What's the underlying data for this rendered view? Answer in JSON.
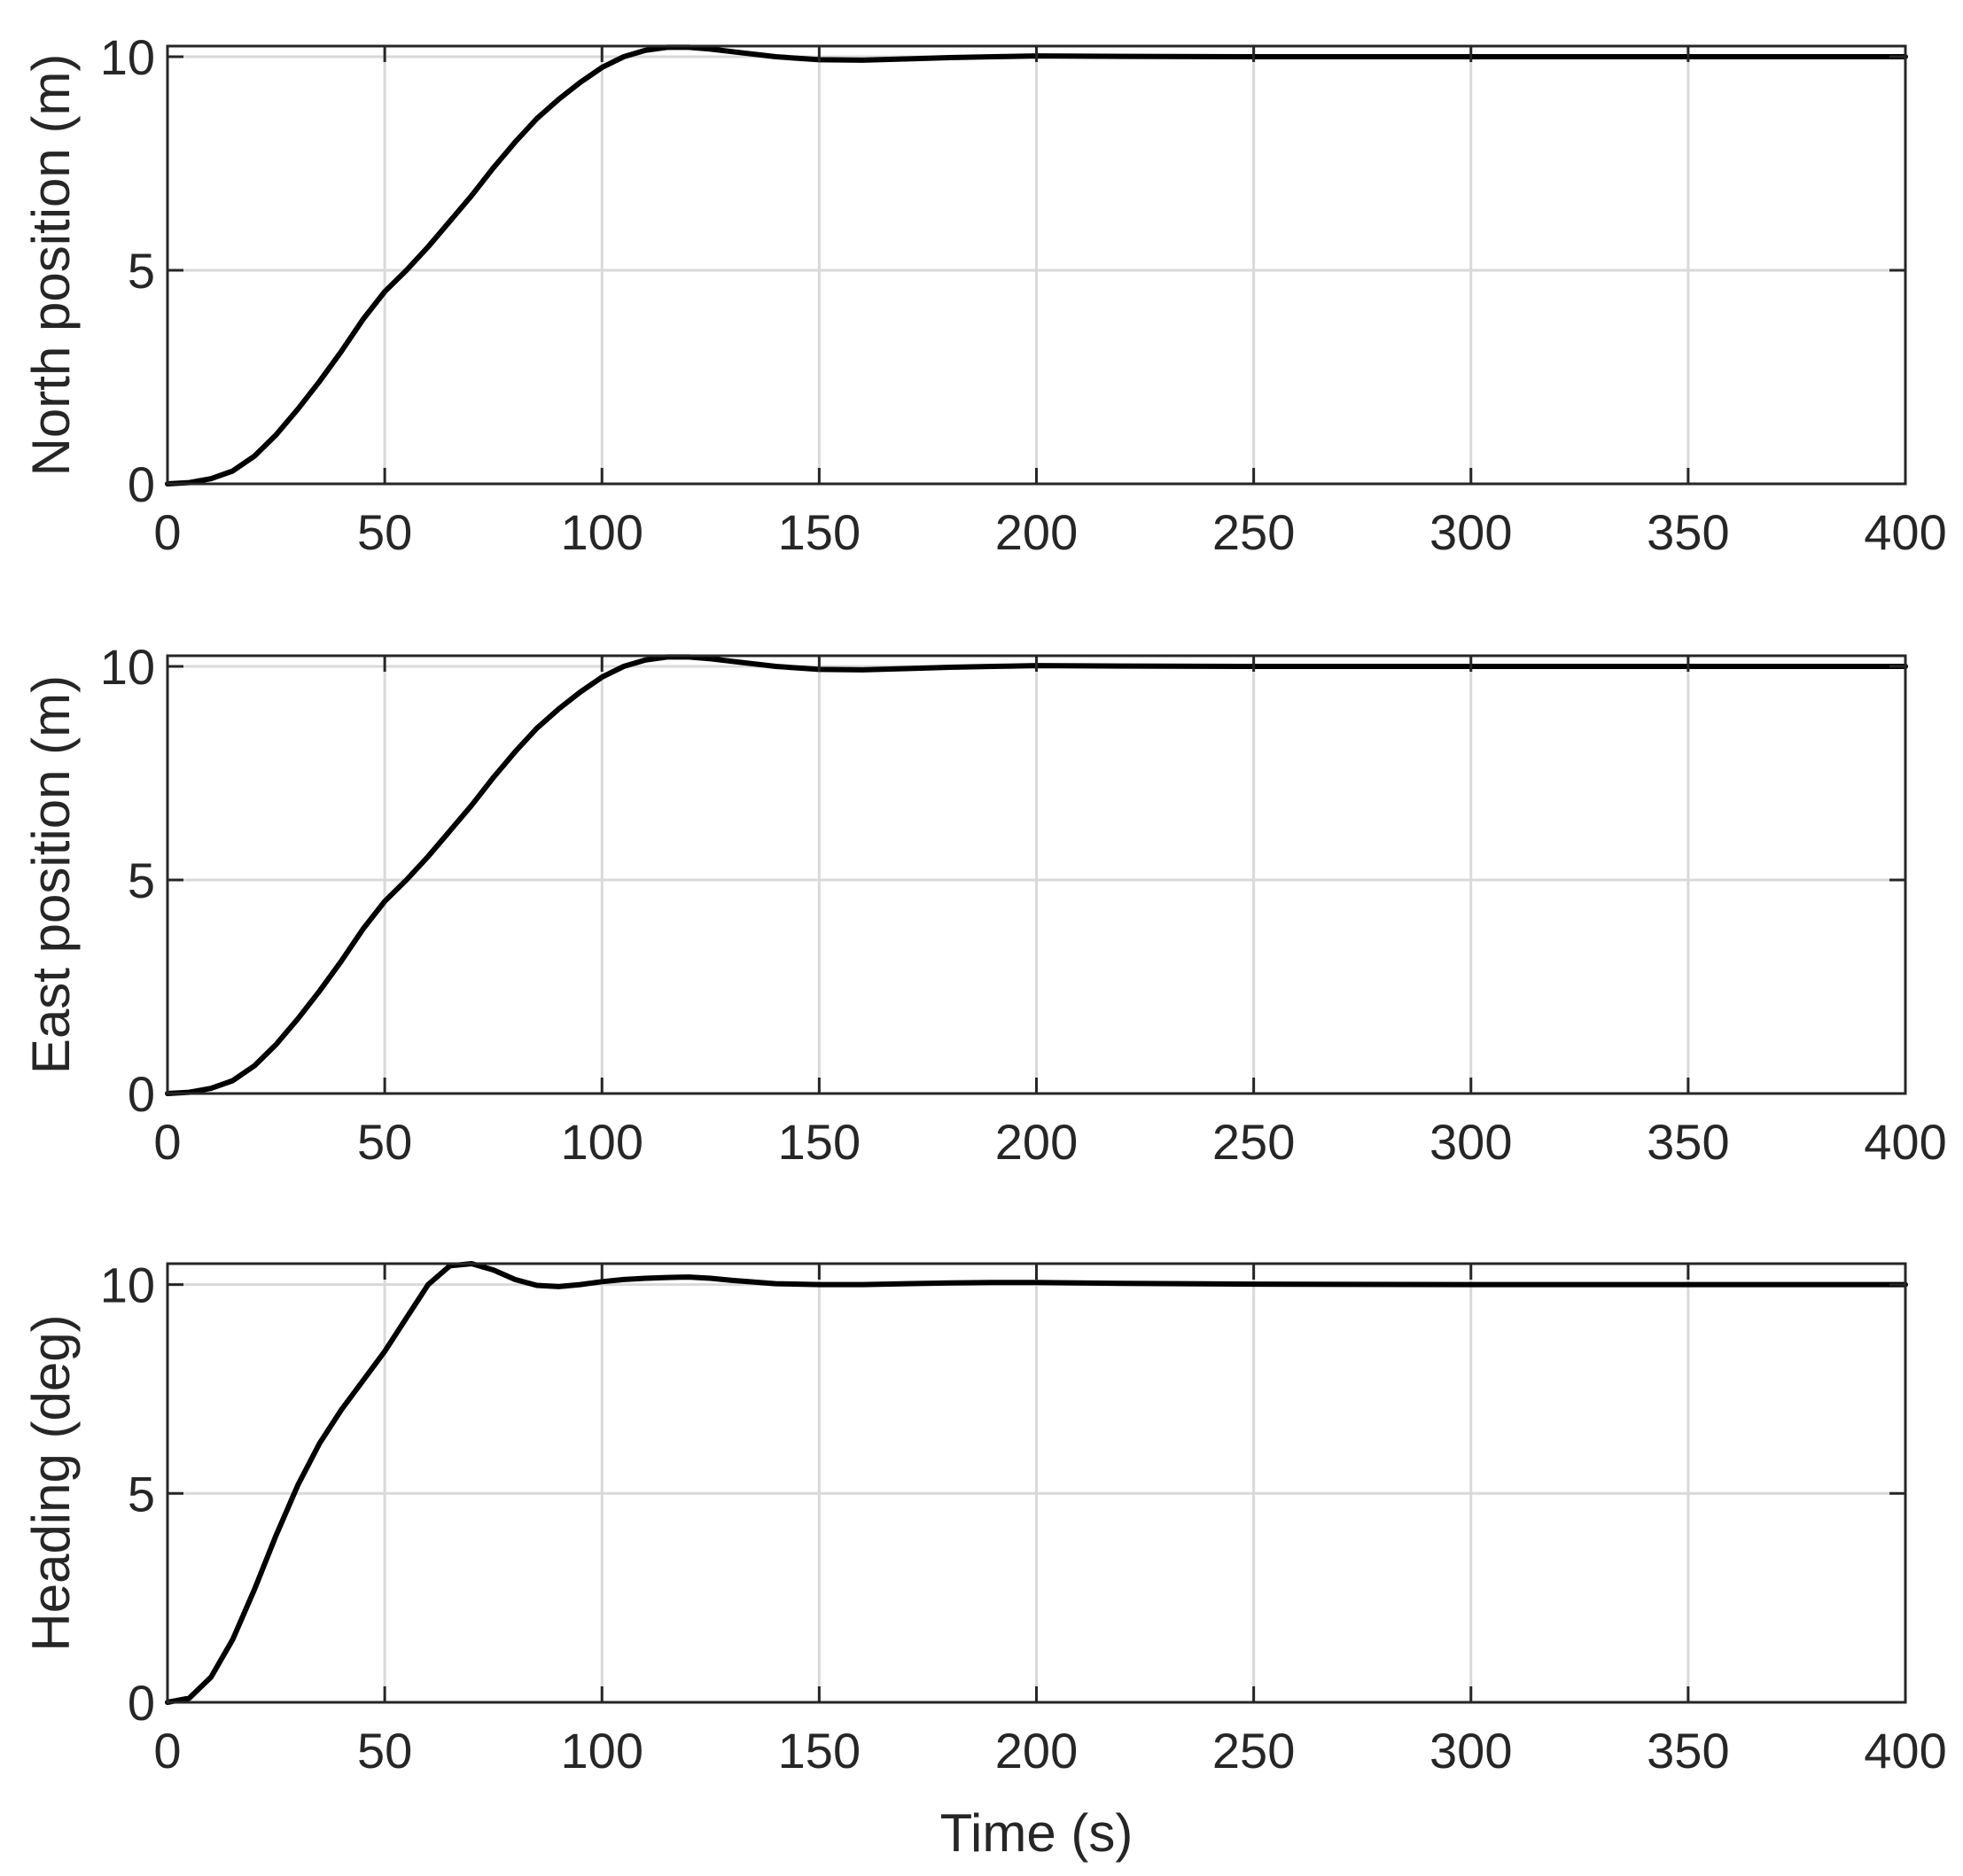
{
  "chart_data": [
    {
      "type": "line",
      "ylabel": "North position (m)",
      "xlabel": "",
      "xlim": [
        0,
        400
      ],
      "ylim": [
        0,
        10.25
      ],
      "xticks": [
        0,
        50,
        100,
        150,
        200,
        250,
        300,
        350,
        400
      ],
      "yticks": [
        0,
        5,
        10
      ],
      "grid": true,
      "line_color": "#000000",
      "series": [
        {
          "x": [
            0,
            5,
            10,
            15,
            20,
            25,
            30,
            35,
            40,
            45,
            50,
            55,
            60,
            65,
            70,
            75,
            80,
            85,
            90,
            95,
            100,
            105,
            110,
            115,
            120,
            125,
            130,
            140,
            150,
            160,
            170,
            180,
            190,
            200,
            220,
            250,
            300,
            350,
            400
          ],
          "values": [
            0,
            0.03,
            0.12,
            0.3,
            0.65,
            1.15,
            1.75,
            2.4,
            3.1,
            3.85,
            4.5,
            5.0,
            5.55,
            6.15,
            6.75,
            7.4,
            8.0,
            8.55,
            9.0,
            9.4,
            9.75,
            10.0,
            10.15,
            10.22,
            10.22,
            10.18,
            10.12,
            10.0,
            9.93,
            9.92,
            9.95,
            9.98,
            10.0,
            10.02,
            10.01,
            10.0,
            10.0,
            10.0,
            10.0
          ]
        }
      ]
    },
    {
      "type": "line",
      "ylabel": "East position (m)",
      "xlabel": "",
      "xlim": [
        0,
        400
      ],
      "ylim": [
        0,
        10.25
      ],
      "xticks": [
        0,
        50,
        100,
        150,
        200,
        250,
        300,
        350,
        400
      ],
      "yticks": [
        0,
        5,
        10
      ],
      "grid": true,
      "line_color": "#000000",
      "series": [
        {
          "x": [
            0,
            5,
            10,
            15,
            20,
            25,
            30,
            35,
            40,
            45,
            50,
            55,
            60,
            65,
            70,
            75,
            80,
            85,
            90,
            95,
            100,
            105,
            110,
            115,
            120,
            125,
            130,
            140,
            150,
            160,
            170,
            180,
            190,
            200,
            220,
            250,
            300,
            350,
            400
          ],
          "values": [
            0,
            0.03,
            0.12,
            0.3,
            0.65,
            1.15,
            1.75,
            2.4,
            3.1,
            3.85,
            4.5,
            5.0,
            5.55,
            6.15,
            6.75,
            7.4,
            8.0,
            8.55,
            9.0,
            9.4,
            9.75,
            10.0,
            10.15,
            10.22,
            10.22,
            10.18,
            10.12,
            10.0,
            9.93,
            9.92,
            9.95,
            9.98,
            10.0,
            10.02,
            10.01,
            10.0,
            10.0,
            10.0,
            10.0
          ]
        }
      ]
    },
    {
      "type": "line",
      "ylabel": "Heading (deg)",
      "xlabel": "Time (s)",
      "xlim": [
        0,
        400
      ],
      "ylim": [
        0,
        10.5
      ],
      "xticks": [
        0,
        50,
        100,
        150,
        200,
        250,
        300,
        350,
        400
      ],
      "yticks": [
        0,
        5,
        10
      ],
      "grid": true,
      "line_color": "#000000",
      "series": [
        {
          "x": [
            0,
            5,
            10,
            15,
            20,
            25,
            30,
            35,
            40,
            45,
            50,
            55,
            60,
            65,
            70,
            75,
            80,
            85,
            90,
            95,
            100,
            105,
            110,
            115,
            120,
            125,
            130,
            140,
            150,
            160,
            170,
            180,
            190,
            200,
            220,
            250,
            300,
            350,
            400
          ],
          "values": [
            0,
            0.1,
            0.6,
            1.5,
            2.7,
            4.0,
            5.2,
            6.2,
            7.0,
            7.7,
            8.4,
            9.2,
            10.0,
            10.45,
            10.5,
            10.35,
            10.12,
            9.98,
            9.95,
            10.0,
            10.07,
            10.12,
            10.15,
            10.17,
            10.18,
            10.15,
            10.1,
            10.02,
            10.0,
            10.0,
            10.02,
            10.04,
            10.05,
            10.05,
            10.03,
            10.01,
            10.0,
            10.0,
            10.0
          ]
        }
      ]
    }
  ]
}
